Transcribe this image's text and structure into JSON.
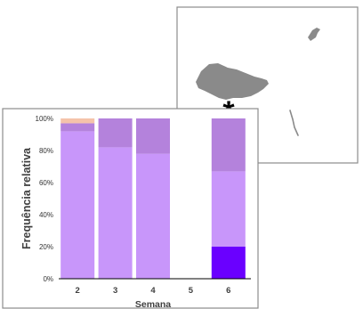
{
  "map": {
    "marker_symbol": "*",
    "land_color": "#8a8a8a",
    "frame_color": "#8c8c8c"
  },
  "chart_data": {
    "type": "bar",
    "stacked": true,
    "xlabel": "Semana",
    "ylabel": "Frequência relativa",
    "ylim": [
      0,
      100
    ],
    "yticks": [
      "0%",
      "20%",
      "40%",
      "60%",
      "80%",
      "100%"
    ],
    "categories": [
      "2",
      "3",
      "4",
      "5",
      "6"
    ],
    "grid": false,
    "legend": "none",
    "series": [
      {
        "color": "#6a00ff",
        "values": [
          0,
          0,
          0,
          0,
          20
        ]
      },
      {
        "color": "#c896fa",
        "values": [
          92,
          82,
          78,
          0,
          47
        ]
      },
      {
        "color": "#b482dc",
        "values": [
          5,
          18,
          22,
          0,
          33
        ]
      },
      {
        "color": "#f5c3aa",
        "values": [
          3,
          0,
          0,
          0,
          0
        ]
      }
    ]
  }
}
